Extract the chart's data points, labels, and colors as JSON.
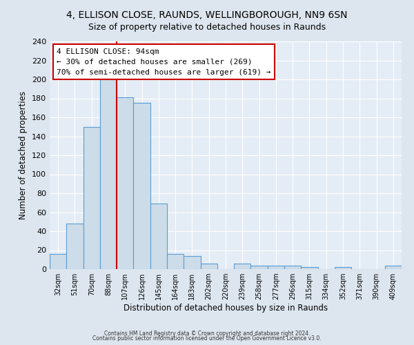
{
  "title": "4, ELLISON CLOSE, RAUNDS, WELLINGBOROUGH, NN9 6SN",
  "subtitle": "Size of property relative to detached houses in Raunds",
  "xlabel": "Distribution of detached houses by size in Raunds",
  "ylabel": "Number of detached properties",
  "bar_labels": [
    "32sqm",
    "51sqm",
    "70sqm",
    "88sqm",
    "107sqm",
    "126sqm",
    "145sqm",
    "164sqm",
    "183sqm",
    "202sqm",
    "220sqm",
    "239sqm",
    "258sqm",
    "277sqm",
    "296sqm",
    "315sqm",
    "334sqm",
    "352sqm",
    "371sqm",
    "390sqm",
    "409sqm"
  ],
  "bar_values": [
    16,
    48,
    150,
    200,
    181,
    175,
    69,
    16,
    14,
    6,
    0,
    6,
    4,
    4,
    4,
    2,
    0,
    2,
    0,
    0,
    4
  ],
  "bar_color": "#ccdce8",
  "bar_edge_color": "#5b9bd5",
  "vline_color": "#cc0000",
  "ylim": [
    0,
    240
  ],
  "yticks": [
    0,
    20,
    40,
    60,
    80,
    100,
    120,
    140,
    160,
    180,
    200,
    220,
    240
  ],
  "annotation_title": "4 ELLISON CLOSE: 94sqm",
  "annotation_line1": "← 30% of detached houses are smaller (269)",
  "annotation_line2": "70% of semi-detached houses are larger (619) →",
  "annotation_box_color": "#ffffff",
  "annotation_box_edge": "#cc0000",
  "footer1": "Contains HM Land Registry data © Crown copyright and database right 2024.",
  "footer2": "Contains public sector information licensed under the Open Government Licence v3.0.",
  "bg_color": "#dde6ef",
  "plot_bg_color": "#e4edf5",
  "title_fontsize": 10,
  "subtitle_fontsize": 9
}
